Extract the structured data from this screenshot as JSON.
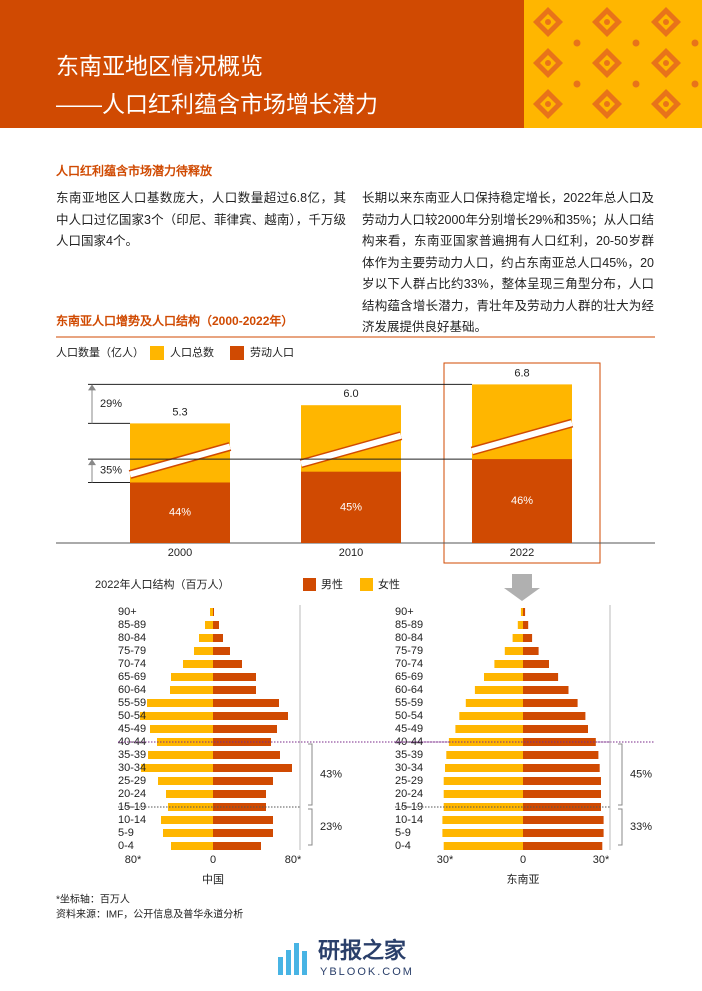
{
  "header": {
    "title": "东南亚地区情况概览",
    "subtitle": "——人口红利蕴含市场增长潜力"
  },
  "section": {
    "heading": "人口红利蕴含市场潜力待释放",
    "paragraphs": [
      "东南亚地区人口基数庞大，人口数量超过6.8亿，其中人口过亿国家3个（印尼、菲律宾、越南），千万级人口国家4个。",
      "长期以来东南亚人口保持稳定增长，2022年总人口及劳动力人口较2000年分别增长29%和35%；从人口结构来看，东南亚国家普遍拥有人口红利，20-50岁群体作为主要劳动力人口，约占东南亚总人口45%，20岁以下人群占比约33%，整体呈现三角型分布，人口结构蕴含增长潜力，青壮年及劳动力人群的壮大为经济发展提供良好基础。"
    ]
  },
  "chart_heading": "东南亚人口增势及人口结构（2000-2022年）",
  "chart_data": [
    {
      "type": "bar",
      "y_label": "人口数量（亿人）",
      "categories": [
        "2000",
        "2010",
        "2022"
      ],
      "series": [
        {
          "name": "人口总数",
          "color": "#ffb600",
          "values": [
            5.3,
            6.0,
            6.8
          ],
          "value_labels": [
            "5.3",
            "6.0",
            "6.8"
          ]
        },
        {
          "name": "劳动人口",
          "color": "#d04a02",
          "values": [
            44,
            45,
            46
          ],
          "value_labels": [
            "44%",
            "45%",
            "46%"
          ]
        }
      ],
      "growth_labels": [
        "29%",
        "35%"
      ]
    },
    {
      "type": "pyramid",
      "title": "2022年人口结构（百万人）",
      "label": "中国",
      "categories": [
        "90+",
        "85-89",
        "80-84",
        "75-79",
        "70-74",
        "65-69",
        "60-64",
        "55-59",
        "50-54",
        "45-49",
        "40-44",
        "35-39",
        "30-34",
        "25-29",
        "20-24",
        "15-19",
        "10-14",
        "5-9",
        "0-4"
      ],
      "series": [
        {
          "name": "男性",
          "color": "#d04a02",
          "values": [
            1,
            6,
            10,
            17,
            29,
            43,
            43,
            66,
            75,
            64,
            58,
            67,
            79,
            60,
            53,
            53,
            60,
            60,
            48
          ]
        },
        {
          "name": "女性",
          "color": "#ffb600",
          "values": [
            3,
            8,
            14,
            19,
            30,
            42,
            43,
            66,
            73,
            63,
            56,
            65,
            72,
            55,
            47,
            45,
            52,
            50,
            42
          ]
        }
      ],
      "xlim": [
        -80,
        80
      ],
      "xticks": [
        {
          "value": -80,
          "label": "80*"
        },
        0,
        {
          "value": 80,
          "label": "80*"
        }
      ],
      "bracket_labels": [
        "43%",
        "23%"
      ]
    },
    {
      "type": "pyramid",
      "label": "东南亚",
      "categories": [
        "90+",
        "85-89",
        "80-84",
        "75-79",
        "70-74",
        "65-69",
        "60-64",
        "55-59",
        "50-54",
        "45-49",
        "40-44",
        "35-39",
        "30-34",
        "25-29",
        "20-24",
        "15-19",
        "10-14",
        "5-9",
        "0-4"
      ],
      "series": [
        {
          "color": "#d04a02",
          "values": [
            0.8,
            2,
            3.5,
            6,
            10,
            13.5,
            17.5,
            21,
            24,
            25,
            28,
            29,
            29.5,
            30,
            30,
            30,
            31,
            31,
            30.5
          ]
        },
        {
          "color": "#ffb600",
          "values": [
            0.8,
            2,
            4,
            7,
            11,
            15,
            18.5,
            22,
            24.5,
            26,
            28.5,
            29.5,
            30,
            30.5,
            30.5,
            30.5,
            31,
            31,
            30.5
          ]
        }
      ],
      "xlim": [
        -30,
        30
      ],
      "xticks": [
        {
          "value": -30,
          "label": "30*"
        },
        0,
        {
          "value": 30,
          "label": "30*"
        }
      ],
      "bracket_labels": [
        "45%",
        "33%"
      ]
    }
  ],
  "notes": [
    "*坐标轴：百万人",
    "资料来源：IMF，公开信息及普华永道分析"
  ],
  "watermark": {
    "name": "研报之家",
    "url": "YBLOOK.COM"
  }
}
